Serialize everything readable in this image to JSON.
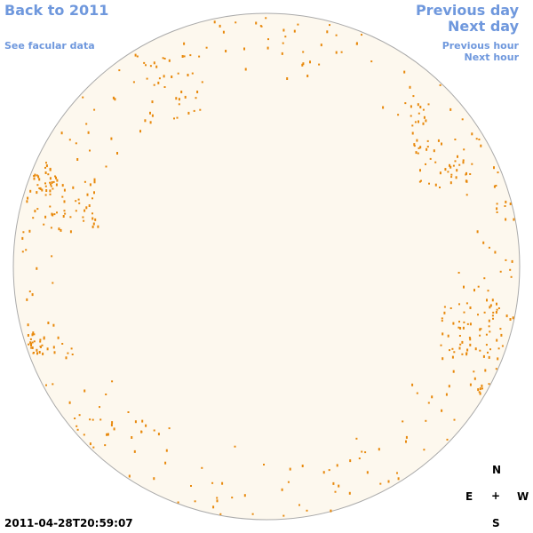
{
  "header": {
    "back_link": "Back to 2011",
    "facular_link": "See facular data",
    "previous_day": "Previous day",
    "next_day": "Next day",
    "previous_hour": "Previous hour",
    "next_hour": "Next hour"
  },
  "footer": {
    "timestamp": "2011-04-28T20:59:07"
  },
  "compass": {
    "north": "N",
    "east": "E",
    "center": "+",
    "west": "W",
    "south": "S"
  }
}
